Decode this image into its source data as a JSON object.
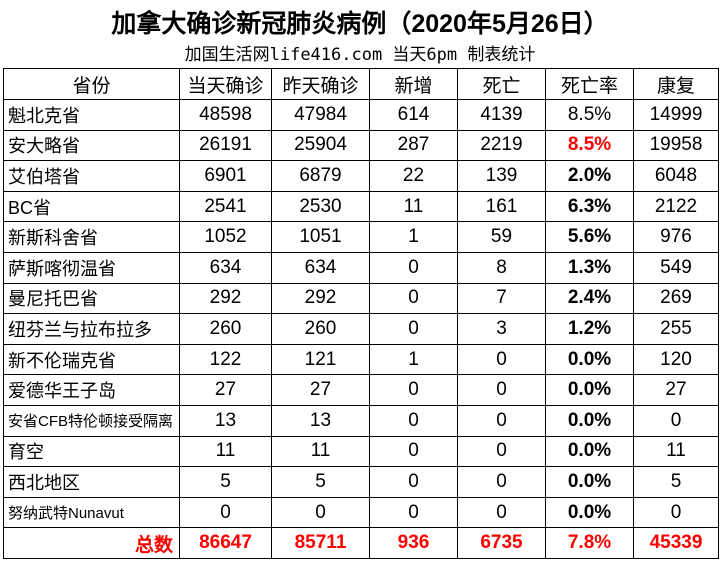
{
  "title": "加拿大确诊新冠肺炎病例（2020年5月26日）",
  "subtitle": "加国生活网life416.com 当天6pm 制表统计",
  "colors": {
    "highlight": "#ff0000"
  },
  "headers": [
    "省份",
    "当天确诊",
    "昨天确诊",
    "新增",
    "死亡",
    "死亡率",
    "康复"
  ],
  "rows": [
    [
      "魁北克省",
      "48598",
      "47984",
      "614",
      "4139",
      "8.5%",
      "14999"
    ],
    [
      "安大略省",
      "26191",
      "25904",
      "287",
      "2219",
      "8.5%",
      "19958"
    ],
    [
      "艾伯塔省",
      "6901",
      "6879",
      "22",
      "139",
      "2.0%",
      "6048"
    ],
    [
      "BC省",
      "2541",
      "2530",
      "11",
      "161",
      "6.3%",
      "2122"
    ],
    [
      "新斯科舍省",
      "1052",
      "1051",
      "1",
      "59",
      "5.6%",
      "976"
    ],
    [
      "萨斯喀彻温省",
      "634",
      "634",
      "0",
      "8",
      "1.3%",
      "549"
    ],
    [
      "曼尼托巴省",
      "292",
      "292",
      "0",
      "7",
      "2.4%",
      "269"
    ],
    [
      "纽芬兰与拉布拉多",
      "260",
      "260",
      "0",
      "3",
      "1.2%",
      "255"
    ],
    [
      "新不伦瑞克省",
      "122",
      "121",
      "1",
      "0",
      "0.0%",
      "120"
    ],
    [
      "爱德华王子岛",
      "27",
      "27",
      "0",
      "0",
      "0.0%",
      "27"
    ],
    [
      "安省CFB特伦顿接受隔离",
      "13",
      "13",
      "0",
      "0",
      "0.0%",
      "0"
    ],
    [
      "育空",
      "11",
      "11",
      "0",
      "0",
      "0.0%",
      "11"
    ],
    [
      "西北地区",
      "5",
      "5",
      "0",
      "0",
      "0.0%",
      "5"
    ],
    [
      "努纳武特Nunavut",
      "0",
      "0",
      "0",
      "0",
      "0.0%",
      "0"
    ]
  ],
  "total": [
    "总数",
    "86647",
    "85711",
    "936",
    "6735",
    "7.8%",
    "45339"
  ]
}
